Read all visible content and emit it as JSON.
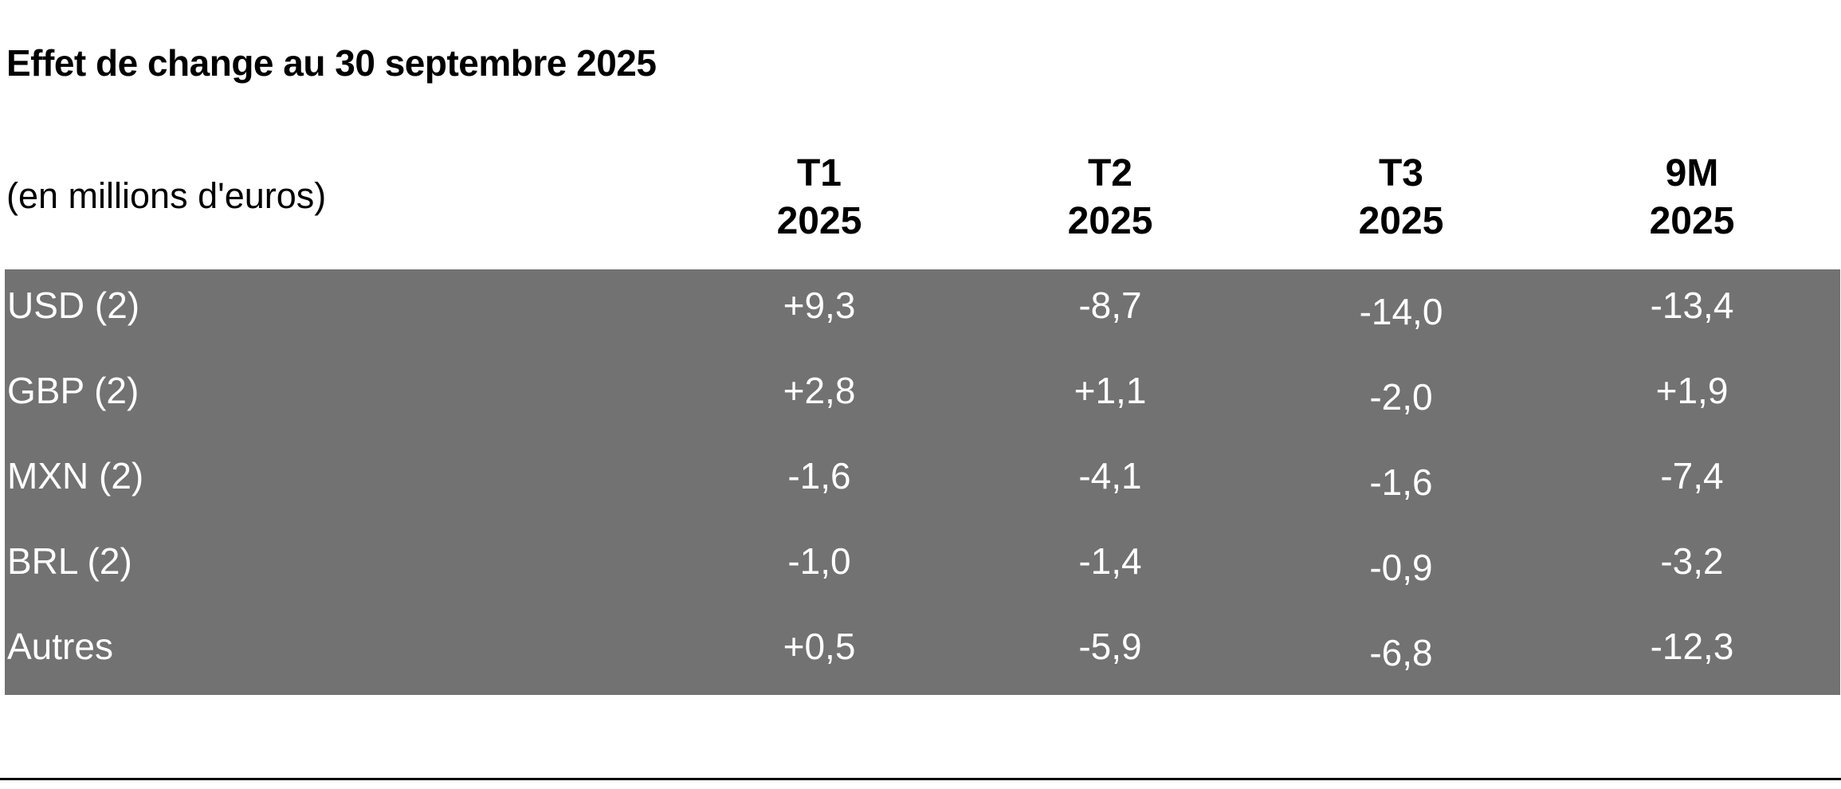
{
  "title": "Effet de change au 30 septembre 2025",
  "unit_label": "(en millions d'euros)",
  "columns": [
    {
      "line1": "T1",
      "line2": "2025"
    },
    {
      "line1": "T2",
      "line2": "2025"
    },
    {
      "line1": "T3",
      "line2": "2025"
    },
    {
      "line1": "9M",
      "line2": "2025"
    }
  ],
  "rows": [
    {
      "label": "USD (2)",
      "values": [
        "+9,3",
        "-8,7",
        "-14,0",
        "-13,4"
      ]
    },
    {
      "label": "GBP (2)",
      "values": [
        "+2,8",
        "+1,1",
        "-2,0",
        "+1,9"
      ]
    },
    {
      "label": "MXN (2)",
      "values": [
        "-1,6",
        "-4,1",
        "-1,6",
        "-7,4"
      ]
    },
    {
      "label": "BRL (2)",
      "values": [
        "-1,0",
        "-1,4",
        "-0,9",
        "-3,2"
      ]
    },
    {
      "label": "Autres",
      "values": [
        "+0,5",
        "-5,9",
        "-6,8",
        "-12,3"
      ]
    }
  ],
  "colors": {
    "table_background": "#727272",
    "table_text": "#ffffff",
    "page_text": "#000000",
    "page_background": "#ffffff"
  }
}
